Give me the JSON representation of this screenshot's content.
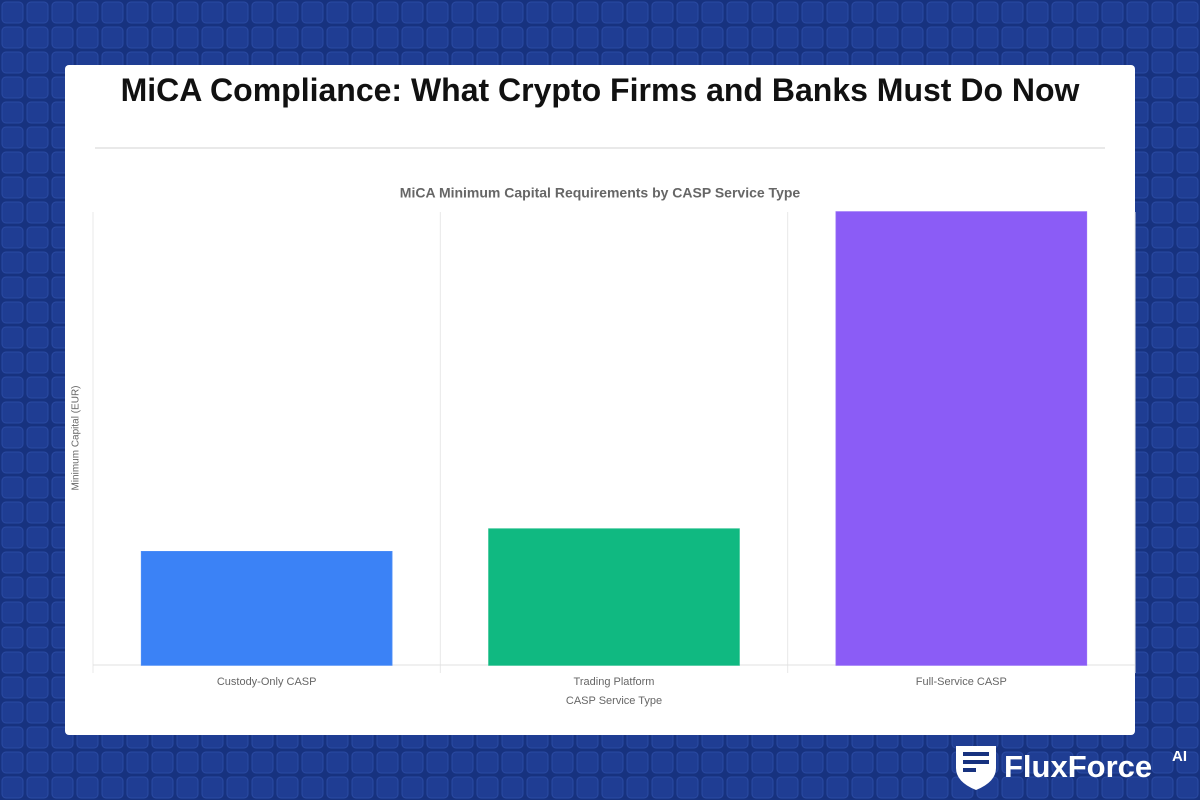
{
  "page_title": "MiCA Compliance: What Crypto Firms and Banks Must Do Now",
  "brand": {
    "name": "FluxForce",
    "suffix": "AI"
  },
  "chart_data": {
    "type": "bar",
    "title": "MiCA Minimum Capital Requirements by CASP Service Type",
    "categories": [
      "Custody-Only CASP",
      "Trading Platform",
      "Full-Service CASP"
    ],
    "values": [
      125000,
      150000,
      500000
    ],
    "colors": [
      "#3b82f6",
      "#10b981",
      "#8b5cf6"
    ],
    "x_label": "CASP Service Type",
    "y_label": "Minimum Capital (EUR)",
    "ylim": [
      0,
      500000
    ]
  }
}
